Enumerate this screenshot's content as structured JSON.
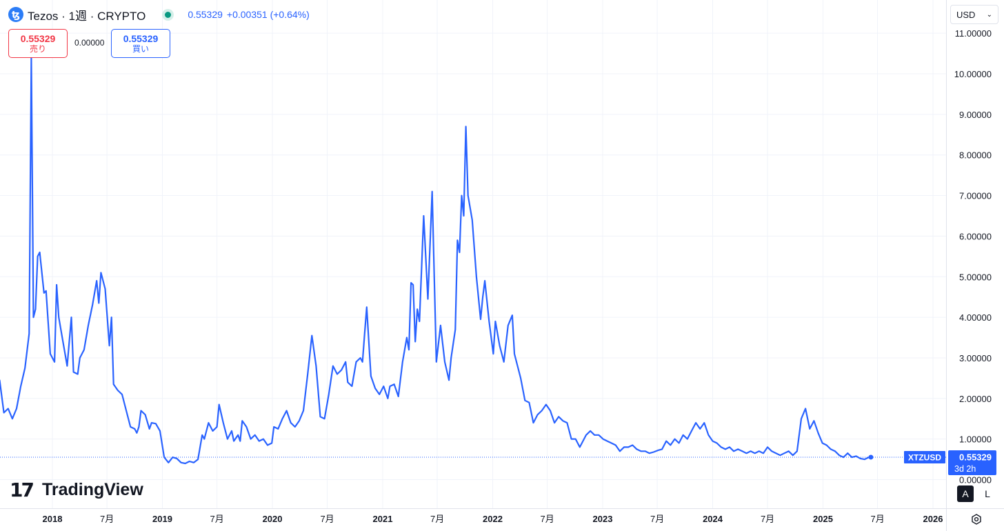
{
  "header": {
    "title": "Tezos · 1週 · CRYPTO",
    "icon_glyph": "ꜩ",
    "price": "0.55329",
    "change": "+0.00351 (+0.64%)",
    "accent_color": "#2962ff",
    "live_color": "#089981"
  },
  "quotes": {
    "sell_value": "0.55329",
    "sell_label": "売り",
    "spread": "0.00000",
    "buy_value": "0.55329",
    "buy_label": "買い",
    "sell_color": "#f23645",
    "buy_color": "#2962ff"
  },
  "currency": {
    "label": "USD"
  },
  "price_tag": {
    "symbol": "XTZUSD",
    "price": "0.55329",
    "countdown": "3d 2h"
  },
  "logo": {
    "mark": "17",
    "text": "TradingView"
  },
  "controls": {
    "auto_label": "A",
    "log_label": "L"
  },
  "chart_data": {
    "type": "line",
    "series": [
      {
        "color": "#2962ff",
        "points": [
          [
            "2017-07-03",
            2.3
          ],
          [
            "2017-07-10",
            2.45
          ],
          [
            "2017-07-24",
            1.65
          ],
          [
            "2017-08-07",
            1.75
          ],
          [
            "2017-08-21",
            1.5
          ],
          [
            "2017-09-04",
            1.75
          ],
          [
            "2017-09-18",
            2.3
          ],
          [
            "2017-10-02",
            2.75
          ],
          [
            "2017-10-16",
            3.6
          ],
          [
            "2017-10-23",
            10.4
          ],
          [
            "2017-10-30",
            4.0
          ],
          [
            "2017-11-06",
            4.2
          ],
          [
            "2017-11-13",
            5.5
          ],
          [
            "2017-11-20",
            5.6
          ],
          [
            "2017-12-04",
            4.6
          ],
          [
            "2017-12-11",
            4.65
          ],
          [
            "2017-12-25",
            3.1
          ],
          [
            "2018-01-08",
            2.9
          ],
          [
            "2018-01-15",
            4.8
          ],
          [
            "2018-01-22",
            4.0
          ],
          [
            "2018-02-05",
            3.4
          ],
          [
            "2018-02-19",
            2.8
          ],
          [
            "2018-03-05",
            4.0
          ],
          [
            "2018-03-12",
            2.65
          ],
          [
            "2018-03-26",
            2.6
          ],
          [
            "2018-04-02",
            3.0
          ],
          [
            "2018-04-16",
            3.2
          ],
          [
            "2018-04-30",
            3.8
          ],
          [
            "2018-05-14",
            4.3
          ],
          [
            "2018-05-28",
            4.9
          ],
          [
            "2018-06-04",
            4.35
          ],
          [
            "2018-06-11",
            5.1
          ],
          [
            "2018-06-25",
            4.7
          ],
          [
            "2018-07-09",
            3.3
          ],
          [
            "2018-07-16",
            4.0
          ],
          [
            "2018-07-23",
            2.35
          ],
          [
            "2018-08-06",
            2.2
          ],
          [
            "2018-08-20",
            2.1
          ],
          [
            "2018-09-03",
            1.7
          ],
          [
            "2018-09-17",
            1.3
          ],
          [
            "2018-10-01",
            1.25
          ],
          [
            "2018-10-08",
            1.15
          ],
          [
            "2018-10-15",
            1.3
          ],
          [
            "2018-10-22",
            1.7
          ],
          [
            "2018-11-05",
            1.6
          ],
          [
            "2018-11-19",
            1.25
          ],
          [
            "2018-11-26",
            1.4
          ],
          [
            "2018-12-10",
            1.38
          ],
          [
            "2018-12-24",
            1.2
          ],
          [
            "2019-01-07",
            0.55
          ],
          [
            "2019-01-21",
            0.42
          ],
          [
            "2019-02-04",
            0.55
          ],
          [
            "2019-02-18",
            0.52
          ],
          [
            "2019-03-04",
            0.42
          ],
          [
            "2019-03-18",
            0.4
          ],
          [
            "2019-04-01",
            0.45
          ],
          [
            "2019-04-15",
            0.42
          ],
          [
            "2019-04-29",
            0.5
          ],
          [
            "2019-05-13",
            1.1
          ],
          [
            "2019-05-20",
            1.0
          ],
          [
            "2019-06-03",
            1.4
          ],
          [
            "2019-06-17",
            1.2
          ],
          [
            "2019-07-01",
            1.3
          ],
          [
            "2019-07-08",
            1.85
          ],
          [
            "2019-07-22",
            1.4
          ],
          [
            "2019-08-05",
            1.0
          ],
          [
            "2019-08-19",
            1.2
          ],
          [
            "2019-08-26",
            0.95
          ],
          [
            "2019-09-09",
            1.1
          ],
          [
            "2019-09-16",
            0.95
          ],
          [
            "2019-09-23",
            1.45
          ],
          [
            "2019-10-07",
            1.3
          ],
          [
            "2019-10-21",
            1.0
          ],
          [
            "2019-11-04",
            1.1
          ],
          [
            "2019-11-18",
            0.95
          ],
          [
            "2019-12-02",
            1.0
          ],
          [
            "2019-12-16",
            0.85
          ],
          [
            "2019-12-30",
            0.9
          ],
          [
            "2020-01-06",
            1.3
          ],
          [
            "2020-01-20",
            1.25
          ],
          [
            "2020-02-03",
            1.5
          ],
          [
            "2020-02-17",
            1.7
          ],
          [
            "2020-03-02",
            1.4
          ],
          [
            "2020-03-16",
            1.3
          ],
          [
            "2020-03-30",
            1.45
          ],
          [
            "2020-04-13",
            1.7
          ],
          [
            "2020-04-27",
            2.6
          ],
          [
            "2020-05-11",
            3.55
          ],
          [
            "2020-05-25",
            2.8
          ],
          [
            "2020-06-08",
            1.55
          ],
          [
            "2020-06-22",
            1.5
          ],
          [
            "2020-07-06",
            2.1
          ],
          [
            "2020-07-20",
            2.8
          ],
          [
            "2020-08-03",
            2.6
          ],
          [
            "2020-08-17",
            2.7
          ],
          [
            "2020-08-31",
            2.9
          ],
          [
            "2020-09-07",
            2.4
          ],
          [
            "2020-09-21",
            2.3
          ],
          [
            "2020-10-05",
            2.9
          ],
          [
            "2020-10-19",
            3.0
          ],
          [
            "2020-10-26",
            2.9
          ],
          [
            "2020-11-02",
            3.6
          ],
          [
            "2020-11-09",
            4.25
          ],
          [
            "2020-11-23",
            2.55
          ],
          [
            "2020-12-07",
            2.25
          ],
          [
            "2020-12-21",
            2.1
          ],
          [
            "2021-01-04",
            2.3
          ],
          [
            "2021-01-18",
            2.0
          ],
          [
            "2021-01-25",
            2.3
          ],
          [
            "2021-02-08",
            2.35
          ],
          [
            "2021-02-22",
            2.05
          ],
          [
            "2021-03-08",
            2.9
          ],
          [
            "2021-03-22",
            3.5
          ],
          [
            "2021-03-29",
            3.2
          ],
          [
            "2021-04-05",
            4.85
          ],
          [
            "2021-04-12",
            4.8
          ],
          [
            "2021-04-19",
            3.4
          ],
          [
            "2021-04-26",
            4.2
          ],
          [
            "2021-05-03",
            3.9
          ],
          [
            "2021-05-17",
            6.5
          ],
          [
            "2021-05-31",
            4.45
          ],
          [
            "2021-06-14",
            7.1
          ],
          [
            "2021-06-28",
            2.9
          ],
          [
            "2021-07-12",
            3.8
          ],
          [
            "2021-07-26",
            2.9
          ],
          [
            "2021-08-09",
            2.45
          ],
          [
            "2021-08-16",
            3.0
          ],
          [
            "2021-08-30",
            3.7
          ],
          [
            "2021-09-06",
            5.9
          ],
          [
            "2021-09-13",
            5.6
          ],
          [
            "2021-09-20",
            7.0
          ],
          [
            "2021-09-27",
            6.5
          ],
          [
            "2021-10-04",
            8.7
          ],
          [
            "2021-10-11",
            7.0
          ],
          [
            "2021-10-25",
            6.4
          ],
          [
            "2021-11-08",
            5.0
          ],
          [
            "2021-11-22",
            3.95
          ],
          [
            "2021-11-29",
            4.5
          ],
          [
            "2021-12-06",
            4.9
          ],
          [
            "2021-12-20",
            3.9
          ],
          [
            "2022-01-03",
            3.1
          ],
          [
            "2022-01-10",
            3.9
          ],
          [
            "2022-01-24",
            3.3
          ],
          [
            "2022-02-07",
            2.9
          ],
          [
            "2022-02-21",
            3.8
          ],
          [
            "2022-03-07",
            4.05
          ],
          [
            "2022-03-14",
            3.1
          ],
          [
            "2022-04-04",
            2.5
          ],
          [
            "2022-04-18",
            1.95
          ],
          [
            "2022-05-02",
            1.9
          ],
          [
            "2022-05-16",
            1.4
          ],
          [
            "2022-05-30",
            1.6
          ],
          [
            "2022-06-13",
            1.7
          ],
          [
            "2022-06-27",
            1.85
          ],
          [
            "2022-07-11",
            1.7
          ],
          [
            "2022-07-25",
            1.4
          ],
          [
            "2022-08-08",
            1.55
          ],
          [
            "2022-08-22",
            1.45
          ],
          [
            "2022-09-05",
            1.4
          ],
          [
            "2022-09-19",
            1.0
          ],
          [
            "2022-10-03",
            1.0
          ],
          [
            "2022-10-17",
            0.8
          ],
          [
            "2022-11-07",
            1.1
          ],
          [
            "2022-11-21",
            1.2
          ],
          [
            "2022-12-05",
            1.1
          ],
          [
            "2022-12-19",
            1.1
          ],
          [
            "2023-01-02",
            1.0
          ],
          [
            "2023-01-16",
            0.95
          ],
          [
            "2023-01-30",
            0.9
          ],
          [
            "2023-02-13",
            0.85
          ],
          [
            "2023-02-27",
            0.7
          ],
          [
            "2023-03-13",
            0.8
          ],
          [
            "2023-03-27",
            0.8
          ],
          [
            "2023-04-10",
            0.85
          ],
          [
            "2023-04-24",
            0.75
          ],
          [
            "2023-05-08",
            0.7
          ],
          [
            "2023-05-22",
            0.7
          ],
          [
            "2023-06-05",
            0.65
          ],
          [
            "2023-06-19",
            0.68
          ],
          [
            "2023-07-03",
            0.72
          ],
          [
            "2023-07-17",
            0.75
          ],
          [
            "2023-07-31",
            0.95
          ],
          [
            "2023-08-14",
            0.85
          ],
          [
            "2023-08-28",
            1.0
          ],
          [
            "2023-09-11",
            0.9
          ],
          [
            "2023-09-25",
            1.1
          ],
          [
            "2023-10-09",
            1.0
          ],
          [
            "2023-10-23",
            1.2
          ],
          [
            "2023-11-06",
            1.4
          ],
          [
            "2023-11-20",
            1.25
          ],
          [
            "2023-12-04",
            1.4
          ],
          [
            "2023-12-18",
            1.1
          ],
          [
            "2024-01-01",
            0.95
          ],
          [
            "2024-01-15",
            0.9
          ],
          [
            "2024-01-29",
            0.8
          ],
          [
            "2024-02-12",
            0.75
          ],
          [
            "2024-02-26",
            0.8
          ],
          [
            "2024-03-11",
            0.7
          ],
          [
            "2024-03-25",
            0.75
          ],
          [
            "2024-04-08",
            0.7
          ],
          [
            "2024-04-22",
            0.65
          ],
          [
            "2024-05-06",
            0.7
          ],
          [
            "2024-05-20",
            0.65
          ],
          [
            "2024-06-03",
            0.7
          ],
          [
            "2024-06-17",
            0.65
          ],
          [
            "2024-07-01",
            0.8
          ],
          [
            "2024-07-15",
            0.7
          ],
          [
            "2024-07-29",
            0.65
          ],
          [
            "2024-08-12",
            0.6
          ],
          [
            "2024-08-26",
            0.65
          ],
          [
            "2024-09-09",
            0.7
          ],
          [
            "2024-09-23",
            0.6
          ],
          [
            "2024-10-07",
            0.7
          ],
          [
            "2024-10-21",
            1.5
          ],
          [
            "2024-11-04",
            1.75
          ],
          [
            "2024-11-18",
            1.25
          ],
          [
            "2024-12-02",
            1.45
          ],
          [
            "2024-12-16",
            1.15
          ],
          [
            "2024-12-30",
            0.9
          ],
          [
            "2025-01-13",
            0.85
          ],
          [
            "2025-01-27",
            0.75
          ],
          [
            "2025-02-10",
            0.7
          ],
          [
            "2025-02-24",
            0.6
          ],
          [
            "2025-03-10",
            0.55
          ],
          [
            "2025-03-24",
            0.65
          ],
          [
            "2025-04-07",
            0.55
          ],
          [
            "2025-04-21",
            0.58
          ],
          [
            "2025-05-05",
            0.52
          ],
          [
            "2025-05-19",
            0.5
          ],
          [
            "2025-06-02",
            0.55
          ],
          [
            "2025-06-09",
            0.55329
          ]
        ]
      }
    ],
    "y_axis_labels": [
      "0.00000",
      "1.00000",
      "2.00000",
      "3.00000",
      "4.00000",
      "5.00000",
      "6.00000",
      "7.00000",
      "8.00000",
      "9.00000",
      "10.00000",
      "11.00000"
    ],
    "x_axis_labels": [
      {
        "date": "2018-01-01",
        "label": "2018",
        "bold": true
      },
      {
        "date": "2018-07-01",
        "label": "7月",
        "bold": false
      },
      {
        "date": "2019-01-01",
        "label": "2019",
        "bold": true
      },
      {
        "date": "2019-07-01",
        "label": "7月",
        "bold": false
      },
      {
        "date": "2020-01-01",
        "label": "2020",
        "bold": true
      },
      {
        "date": "2020-07-01",
        "label": "7月",
        "bold": false
      },
      {
        "date": "2021-01-01",
        "label": "2021",
        "bold": true
      },
      {
        "date": "2021-07-01",
        "label": "7月",
        "bold": false
      },
      {
        "date": "2022-01-01",
        "label": "2022",
        "bold": true
      },
      {
        "date": "2022-07-01",
        "label": "7月",
        "bold": false
      },
      {
        "date": "2023-01-01",
        "label": "2023",
        "bold": true
      },
      {
        "date": "2023-07-01",
        "label": "7月",
        "bold": false
      },
      {
        "date": "2024-01-01",
        "label": "2024",
        "bold": true
      },
      {
        "date": "2024-07-01",
        "label": "7月",
        "bold": false
      },
      {
        "date": "2025-01-01",
        "label": "2025",
        "bold": true
      },
      {
        "date": "2025-07-01",
        "label": "7月",
        "bold": false
      },
      {
        "date": "2026-01-01",
        "label": "2026",
        "bold": true
      }
    ],
    "last_value": 0.55329,
    "ylim": [
      0,
      11.7
    ],
    "xlim": [
      "2017-05-01",
      "2026-02-15"
    ],
    "grid": true
  }
}
